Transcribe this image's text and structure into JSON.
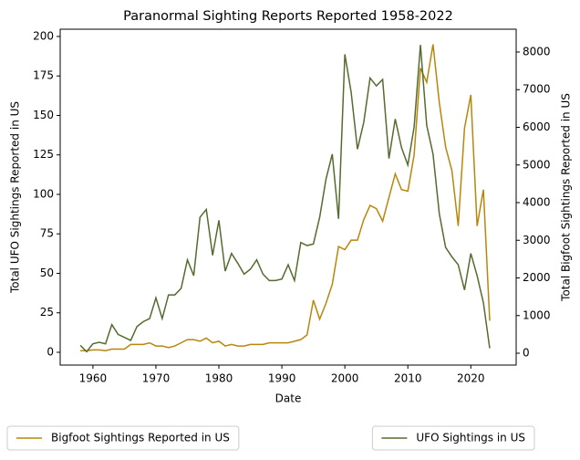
{
  "chart_data": {
    "type": "line",
    "title": "Paranormal Sighting Reports Reported 1958-2022",
    "xlabel": "Date",
    "ylabel": "Total UFO Sightings Reported in US",
    "y2label": "Total Bigfoot Sightings Reported in US",
    "x": [
      1958,
      1959,
      1960,
      1961,
      1962,
      1963,
      1964,
      1965,
      1966,
      1967,
      1968,
      1969,
      1970,
      1971,
      1972,
      1973,
      1974,
      1975,
      1976,
      1977,
      1978,
      1979,
      1980,
      1981,
      1982,
      1983,
      1984,
      1985,
      1986,
      1987,
      1988,
      1989,
      1990,
      1991,
      1992,
      1993,
      1994,
      1995,
      1996,
      1997,
      1998,
      1999,
      2000,
      2001,
      2002,
      2003,
      2004,
      2005,
      2006,
      2007,
      2008,
      2009,
      2010,
      2011,
      2012,
      2013,
      2014,
      2015,
      2016,
      2017,
      2018,
      2019,
      2020,
      2021,
      2022,
      2023
    ],
    "series": [
      {
        "name": "Bigfoot Sightings Reported in US",
        "color": "#b8860b",
        "axis": "y",
        "values": [
          1,
          1,
          1.5,
          1.5,
          1,
          2,
          2,
          2,
          5,
          5,
          5,
          6,
          4,
          4,
          3,
          4,
          6,
          8,
          8,
          7,
          9,
          6,
          7,
          4,
          5,
          4,
          4,
          5,
          5,
          5,
          6,
          6,
          6,
          6,
          7,
          8,
          11,
          33,
          21,
          31,
          43,
          67,
          65,
          71,
          71,
          84,
          93,
          91,
          83,
          98,
          113,
          103,
          102,
          125,
          180,
          171,
          195,
          158,
          130,
          115,
          80,
          142,
          163,
          80,
          103,
          20
        ]
      },
      {
        "name": "UFO Sightings in US",
        "color": "#556b2f",
        "axis": "y2",
        "values": [
          210,
          40,
          250,
          290,
          250,
          760,
          500,
          420,
          340,
          710,
          840,
          920,
          1470,
          920,
          1550,
          1550,
          1720,
          2480,
          2060,
          3610,
          3820,
          2600,
          3530,
          2180,
          2650,
          2390,
          2100,
          2230,
          2480,
          2100,
          1930,
          1930,
          1970,
          2350,
          1930,
          2940,
          2860,
          2900,
          3610,
          4620,
          5290,
          3570,
          7940,
          6930,
          5420,
          6130,
          7310,
          7100,
          7270,
          5170,
          6220,
          5460,
          5000,
          6010,
          8190,
          6050,
          5290,
          3700,
          2810,
          2560,
          2350,
          1680,
          2650,
          2060,
          1340,
          130
        ]
      }
    ],
    "xlim": [
      1954.8,
      2027.2
    ],
    "xticks": [
      1960,
      1970,
      1980,
      1990,
      2000,
      2010,
      2020
    ],
    "ylim": [
      -8.1,
      204.6
    ],
    "yticks": [
      0,
      25,
      50,
      75,
      100,
      125,
      150,
      175,
      200
    ],
    "y2lim": [
      -315,
      8606
    ],
    "y2ticks": [
      0,
      1000,
      2000,
      3000,
      4000,
      5000,
      6000,
      7000,
      8000
    ],
    "legend": "below"
  }
}
